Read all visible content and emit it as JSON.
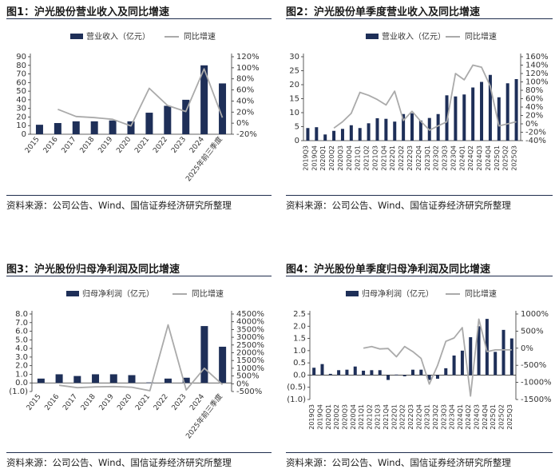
{
  "colors": {
    "bar": "#1e2f58",
    "line": "#aaaaaa",
    "axis": "#333333",
    "negative_label": "#c0392b",
    "rule": "#1f2d4d"
  },
  "source_text": "资料来源：公司公告、Wind、国信证券经济研究所整理",
  "chart_data": [
    {
      "type": "bar",
      "title": "图1：沪光股份营业收入及同比增速",
      "legend": [
        "营业收入（亿元）",
        "同比增速"
      ],
      "categories": [
        "2015",
        "2016",
        "2017",
        "2018",
        "2019",
        "2020",
        "2021",
        "2022",
        "2023",
        "2024",
        "2025年前三季度"
      ],
      "series": [
        {
          "name": "营业收入（亿元）",
          "axis": "left",
          "kind": "bar",
          "values": [
            11,
            13,
            15,
            15,
            16,
            15,
            25,
            33,
            40,
            80,
            59
          ]
        },
        {
          "name": "同比增速",
          "axis": "right",
          "kind": "line",
          "values": [
            null,
            25,
            12,
            10,
            7,
            -5,
            63,
            32,
            21,
            98,
            10
          ]
        }
      ],
      "y_left": {
        "min": 0,
        "max": 90,
        "step": 10,
        "ticks": [
          "0",
          "10",
          "20",
          "30",
          "40",
          "50",
          "60",
          "70",
          "80",
          "90"
        ]
      },
      "y_right": {
        "min": -20,
        "max": 120,
        "step": 20,
        "ticks": [
          "-20%",
          "0%",
          "20%",
          "40%",
          "60%",
          "80%",
          "100%",
          "120%"
        ]
      }
    },
    {
      "type": "bar",
      "title": "图2：沪光股份单季度营业收入及同比增速",
      "legend": [
        "营业收入（亿元）",
        "同比增速"
      ],
      "categories": [
        "2019Q3",
        "2019Q4",
        "2020Q1",
        "2020Q2",
        "2020Q3",
        "2020Q4",
        "2021Q1",
        "2021Q2",
        "2021Q3",
        "2021Q4",
        "2022Q1",
        "2022Q2",
        "2022Q3",
        "2022Q4",
        "2023Q1",
        "2023Q2",
        "2023Q3",
        "2023Q4",
        "2024Q1",
        "2024Q2",
        "2024Q3",
        "2024Q4",
        "2025Q1",
        "2025Q2",
        "2025Q3"
      ],
      "series": [
        {
          "name": "营业收入（亿元）",
          "axis": "left",
          "kind": "bar",
          "values": [
            4.5,
            4.8,
            2.2,
            3.5,
            4.2,
            5.5,
            4.5,
            6.2,
            8,
            7.8,
            6.8,
            9.5,
            9.8,
            7.2,
            8.1,
            9.5,
            16.2,
            15.8,
            16.5,
            19,
            21,
            23.5,
            15.5,
            20.5,
            22
          ]
        },
        {
          "name": "同比增速",
          "axis": "right",
          "kind": "line",
          "values": [
            null,
            null,
            null,
            -10,
            5,
            25,
            75,
            68,
            58,
            45,
            78,
            8,
            30,
            6,
            -15,
            -5,
            5,
            120,
            105,
            140,
            135,
            90,
            -5,
            0,
            5
          ]
        }
      ],
      "y_left": {
        "min": 0,
        "max": 30,
        "step": 5,
        "ticks": [
          "0",
          "5",
          "10",
          "15",
          "20",
          "25",
          "30"
        ]
      },
      "y_right": {
        "min": -40,
        "max": 160,
        "step": 20,
        "ticks": [
          "-40%",
          "-20%",
          "0%",
          "20%",
          "40%",
          "60%",
          "80%",
          "100%",
          "120%",
          "140%",
          "160%"
        ]
      }
    },
    {
      "type": "bar",
      "title": "图3：沪光股份归母净利润及同比增速",
      "legend": [
        "归母净利润（亿元）",
        "同比增速"
      ],
      "categories": [
        "2015",
        "2016",
        "2017",
        "2018",
        "2019",
        "2020",
        "2021",
        "2022",
        "2023",
        "2024",
        "2025年前三季度"
      ],
      "series": [
        {
          "name": "归母净利润（亿元）",
          "axis": "left",
          "kind": "bar",
          "values": [
            0.5,
            1.0,
            0.8,
            1.0,
            1.0,
            0.9,
            0.05,
            0.5,
            0.6,
            6.6,
            4.2
          ]
        },
        {
          "name": "同比增速",
          "axis": "right",
          "kind": "line",
          "values": [
            null,
            -100,
            -250,
            -200,
            -180,
            -220,
            -450,
            3800,
            -400,
            1000,
            -50
          ]
        }
      ],
      "y_left": {
        "min": -1.0,
        "max": 8.0,
        "step": 1.0,
        "ticks": [
          "(1.0)",
          "0.0",
          "1.0",
          "2.0",
          "3.0",
          "4.0",
          "5.0",
          "6.0",
          "7.0",
          "8.0"
        ]
      },
      "y_right": {
        "min": -500,
        "max": 4500,
        "step": 500,
        "ticks": [
          "-500%",
          "0%",
          "500%",
          "1000%",
          "1500%",
          "2000%",
          "2500%",
          "3000%",
          "3500%",
          "4000%",
          "4500%"
        ]
      }
    },
    {
      "type": "bar",
      "title": "图4：沪光股份单季度归母净利润及同比增速",
      "legend": [
        "归母净利润（亿元）",
        "同比增速"
      ],
      "categories": [
        "2019Q3",
        "2019Q4",
        "2020Q1",
        "2020Q2",
        "2020Q3",
        "2020Q4",
        "2021Q1",
        "2021Q2",
        "2021Q3",
        "2021Q4",
        "2022Q1",
        "2022Q2",
        "2022Q3",
        "2022Q4",
        "2023Q1",
        "2023Q2",
        "2023Q3",
        "2023Q4",
        "2024Q1",
        "2024Q2",
        "2024Q3",
        "2024Q4",
        "2025Q1",
        "2025Q2",
        "2025Q3"
      ],
      "series": [
        {
          "name": "归母净利润（亿元）",
          "axis": "left",
          "kind": "bar",
          "values": [
            0.3,
            0.45,
            0.05,
            0.2,
            0.22,
            0.35,
            0.18,
            0.2,
            0.2,
            -0.2,
            0.02,
            -0.05,
            0.22,
            0.22,
            -0.2,
            -0.15,
            0.28,
            0.8,
            1.0,
            1.55,
            2.0,
            2.3,
            0.95,
            1.85,
            1.5
          ]
        },
        {
          "name": "同比增速",
          "axis": "right",
          "kind": "line",
          "values": [
            null,
            null,
            null,
            null,
            null,
            null,
            0,
            50,
            -20,
            -10,
            -250,
            50,
            -100,
            -300,
            -1050,
            -500,
            200,
            300,
            600,
            -1400,
            850,
            -100,
            -50,
            -50,
            -50
          ]
        }
      ],
      "y_left": {
        "min": -1.0,
        "max": 2.5,
        "step": 0.5,
        "ticks": [
          "(1.0)",
          "(0.5)",
          "0.0",
          "0.5",
          "1.0",
          "1.5",
          "2.0",
          "2.5"
        ]
      },
      "y_right": {
        "min": -1500,
        "max": 1000,
        "step": 500,
        "ticks": [
          "-1500%",
          "-1000%",
          "-500%",
          "0%",
          "500%",
          "1000%"
        ]
      }
    }
  ]
}
